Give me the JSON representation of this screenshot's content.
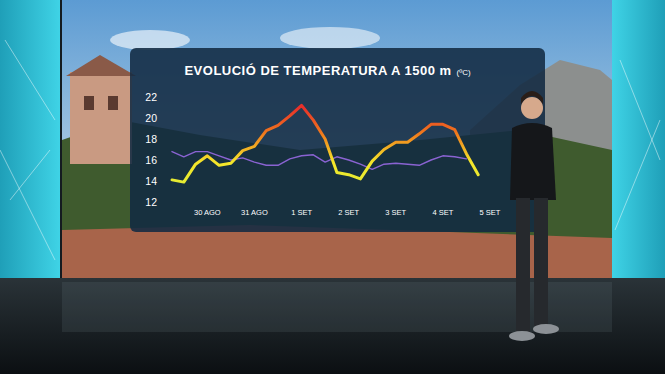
{
  "chart_data": {
    "type": "line",
    "title": "EVOLUCIÓ DE TEMPERATURA A 1500 m",
    "y_label": "(ºC)",
    "categories": [
      null,
      null,
      null,
      "30 AGO",
      null,
      null,
      null,
      "31 AGO",
      null,
      null,
      null,
      "1 SET",
      null,
      null,
      null,
      "2 SET",
      null,
      null,
      null,
      "3 SET",
      null,
      null,
      null,
      "4 SET",
      null,
      null,
      null,
      "5 SET"
    ],
    "series": [
      {
        "color": "#f07a1c",
        "values": [
          14.1,
          13.9,
          15.6,
          16.4,
          15.5,
          15.7,
          16.9,
          17.3,
          18.8,
          19.3,
          20.2,
          21.2,
          19.8,
          18.0,
          14.8,
          14.6,
          14.2,
          15.9,
          17.0,
          17.7,
          17.7,
          18.5,
          19.4,
          19.4,
          18.9,
          16.6,
          14.6,
          null
        ]
      },
      {
        "color": "#8a63d2",
        "values": [
          16.8,
          16.3,
          16.8,
          16.8,
          16.4,
          16.0,
          16.2,
          15.8,
          15.5,
          15.5,
          16.1,
          16.4,
          16.5,
          15.8,
          16.3,
          16.0,
          15.6,
          15.1,
          15.6,
          15.7,
          15.6,
          15.5,
          16.0,
          16.4,
          16.3,
          16.1,
          null,
          null
        ]
      }
    ],
    "ylim": [
      12,
      22
    ],
    "yticks": [
      12,
      14,
      16,
      18,
      20,
      22
    ],
    "grid": false
  }
}
